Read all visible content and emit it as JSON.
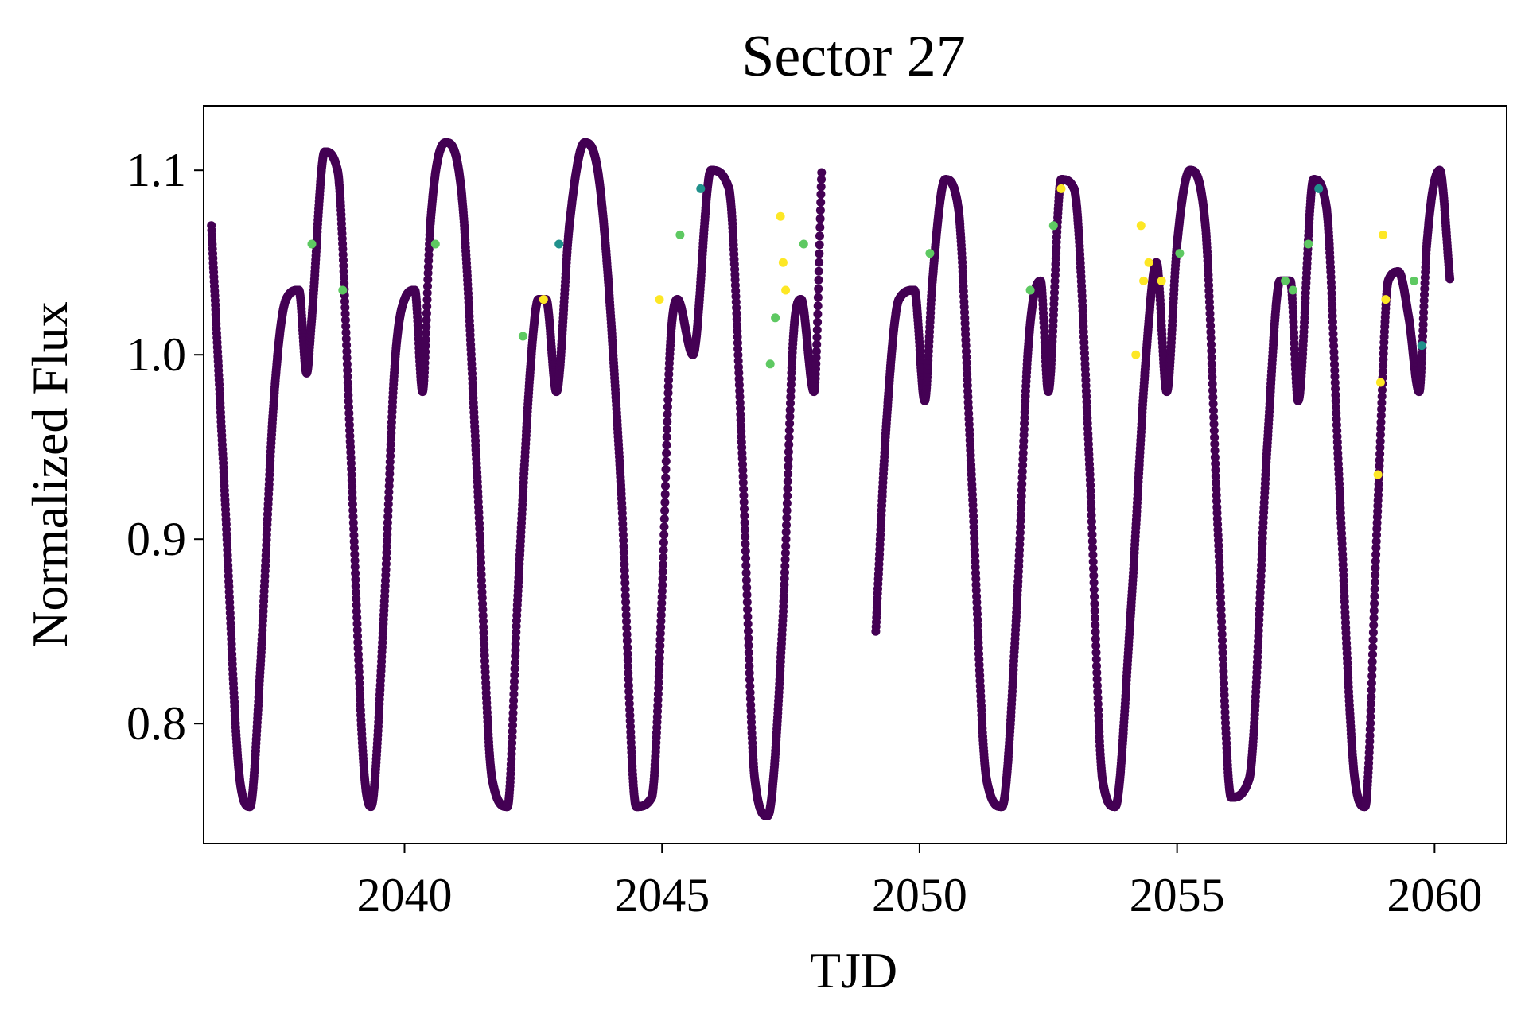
{
  "chart_data": {
    "type": "scatter",
    "title": "Sector 27",
    "xlabel": "TJD",
    "ylabel": "Normalized Flux",
    "xlim": [
      2036.1,
      2061.4
    ],
    "ylim": [
      0.735,
      1.135
    ],
    "xticks": [
      2040,
      2045,
      2050,
      2055,
      2060
    ],
    "xtick_labels": [
      "2040",
      "2045",
      "2050",
      "2055",
      "2060"
    ],
    "yticks": [
      0.8,
      0.9,
      1.0,
      1.1
    ],
    "ytick_labels": [
      "0.8",
      "0.9",
      "1.0",
      "1.1"
    ],
    "grid": false,
    "colormap": "viridis",
    "colors": {
      "base": "#440154",
      "low": "#3b528b",
      "mid": "#21918c",
      "high": "#5ec962",
      "peak": "#fde725"
    },
    "segments": [
      {
        "x": [
          2036.25,
          2036.5,
          2036.8,
          2037.0,
          2037.2,
          2037.45,
          2037.7,
          2037.95,
          2038.1,
          2038.2,
          2038.45,
          2038.7,
          2038.95,
          2039.2,
          2039.35,
          2039.6,
          2039.8,
          2040.0,
          2040.2,
          2040.35,
          2040.5,
          2040.8,
          2041.1,
          2041.4,
          2041.7,
          2042.0,
          2042.2,
          2042.45,
          2042.6,
          2042.75,
          2042.95,
          2043.2,
          2043.5,
          2043.8,
          2044.2,
          2044.5,
          2044.8,
          2045.0,
          2045.15,
          2045.3,
          2045.6,
          2045.95,
          2046.3,
          2046.55,
          2046.8,
          2047.05,
          2047.35,
          2047.55,
          2047.7,
          2047.95,
          2048.1
        ],
        "y": [
          1.07,
          0.93,
          0.77,
          0.755,
          0.83,
          0.97,
          1.03,
          1.035,
          0.99,
          1.02,
          1.11,
          1.1,
          0.95,
          0.78,
          0.755,
          0.86,
          0.99,
          1.03,
          1.035,
          0.98,
          1.07,
          1.115,
          1.09,
          0.94,
          0.77,
          0.755,
          0.87,
          0.995,
          1.03,
          1.03,
          0.98,
          1.07,
          1.115,
          1.09,
          0.93,
          0.755,
          0.76,
          0.87,
          1.0,
          1.03,
          1.0,
          1.1,
          1.09,
          0.95,
          0.77,
          0.75,
          0.86,
          1.01,
          1.03,
          0.98,
          1.1
        ]
      },
      {
        "x": [
          2049.15,
          2049.35,
          2049.6,
          2049.9,
          2050.1,
          2050.25,
          2050.5,
          2050.75,
          2051.0,
          2051.3,
          2051.6,
          2051.9,
          2052.1,
          2052.35,
          2052.5,
          2052.75,
          2053.0,
          2053.3,
          2053.55,
          2053.8,
          2054.1,
          2054.4,
          2054.6,
          2054.8,
          2055.0,
          2055.25,
          2055.55,
          2055.8,
          2056.05,
          2056.4,
          2056.75,
          2057.0,
          2057.2,
          2057.35,
          2057.65,
          2057.9,
          2058.15,
          2058.45,
          2058.65,
          2058.9,
          2059.1,
          2059.3,
          2059.5,
          2059.7,
          2059.85,
          2060.1,
          2060.3
        ],
        "y": [
          0.85,
          0.96,
          1.03,
          1.035,
          0.975,
          1.04,
          1.095,
          1.08,
          0.94,
          0.77,
          0.755,
          0.87,
          1.0,
          1.04,
          0.98,
          1.095,
          1.09,
          0.94,
          0.77,
          0.755,
          0.86,
          1.0,
          1.05,
          0.98,
          1.06,
          1.1,
          1.07,
          0.9,
          0.76,
          0.77,
          0.95,
          1.04,
          1.04,
          0.975,
          1.095,
          1.08,
          0.93,
          0.77,
          0.755,
          0.92,
          1.04,
          1.045,
          1.02,
          0.98,
          1.06,
          1.1,
          1.04
        ]
      }
    ],
    "highlight_points": [
      {
        "x": 2038.2,
        "y": 1.06,
        "c": "high"
      },
      {
        "x": 2038.8,
        "y": 1.035,
        "c": "high"
      },
      {
        "x": 2040.6,
        "y": 1.06,
        "c": "high"
      },
      {
        "x": 2042.3,
        "y": 1.01,
        "c": "high"
      },
      {
        "x": 2042.7,
        "y": 1.03,
        "c": "peak"
      },
      {
        "x": 2043.0,
        "y": 1.06,
        "c": "mid"
      },
      {
        "x": 2044.95,
        "y": 1.03,
        "c": "peak"
      },
      {
        "x": 2045.35,
        "y": 1.065,
        "c": "high"
      },
      {
        "x": 2045.75,
        "y": 1.09,
        "c": "mid"
      },
      {
        "x": 2047.1,
        "y": 0.995,
        "c": "high"
      },
      {
        "x": 2047.2,
        "y": 1.02,
        "c": "high"
      },
      {
        "x": 2047.3,
        "y": 1.075,
        "c": "peak"
      },
      {
        "x": 2047.35,
        "y": 1.05,
        "c": "peak"
      },
      {
        "x": 2047.4,
        "y": 1.035,
        "c": "peak"
      },
      {
        "x": 2047.75,
        "y": 1.06,
        "c": "high"
      },
      {
        "x": 2050.2,
        "y": 1.055,
        "c": "high"
      },
      {
        "x": 2052.15,
        "y": 1.035,
        "c": "high"
      },
      {
        "x": 2052.6,
        "y": 1.07,
        "c": "high"
      },
      {
        "x": 2052.75,
        "y": 1.09,
        "c": "peak"
      },
      {
        "x": 2054.3,
        "y": 1.07,
        "c": "peak"
      },
      {
        "x": 2054.35,
        "y": 1.04,
        "c": "peak"
      },
      {
        "x": 2054.2,
        "y": 1.0,
        "c": "peak"
      },
      {
        "x": 2054.45,
        "y": 1.05,
        "c": "peak"
      },
      {
        "x": 2054.7,
        "y": 1.04,
        "c": "peak"
      },
      {
        "x": 2055.05,
        "y": 1.055,
        "c": "high"
      },
      {
        "x": 2057.1,
        "y": 1.04,
        "c": "high"
      },
      {
        "x": 2057.25,
        "y": 1.035,
        "c": "high"
      },
      {
        "x": 2057.55,
        "y": 1.06,
        "c": "high"
      },
      {
        "x": 2057.75,
        "y": 1.09,
        "c": "mid"
      },
      {
        "x": 2058.9,
        "y": 0.935,
        "c": "peak"
      },
      {
        "x": 2058.95,
        "y": 0.985,
        "c": "peak"
      },
      {
        "x": 2059.0,
        "y": 1.065,
        "c": "peak"
      },
      {
        "x": 2059.05,
        "y": 1.03,
        "c": "peak"
      },
      {
        "x": 2059.6,
        "y": 1.04,
        "c": "high"
      },
      {
        "x": 2059.75,
        "y": 1.005,
        "c": "mid"
      }
    ]
  }
}
